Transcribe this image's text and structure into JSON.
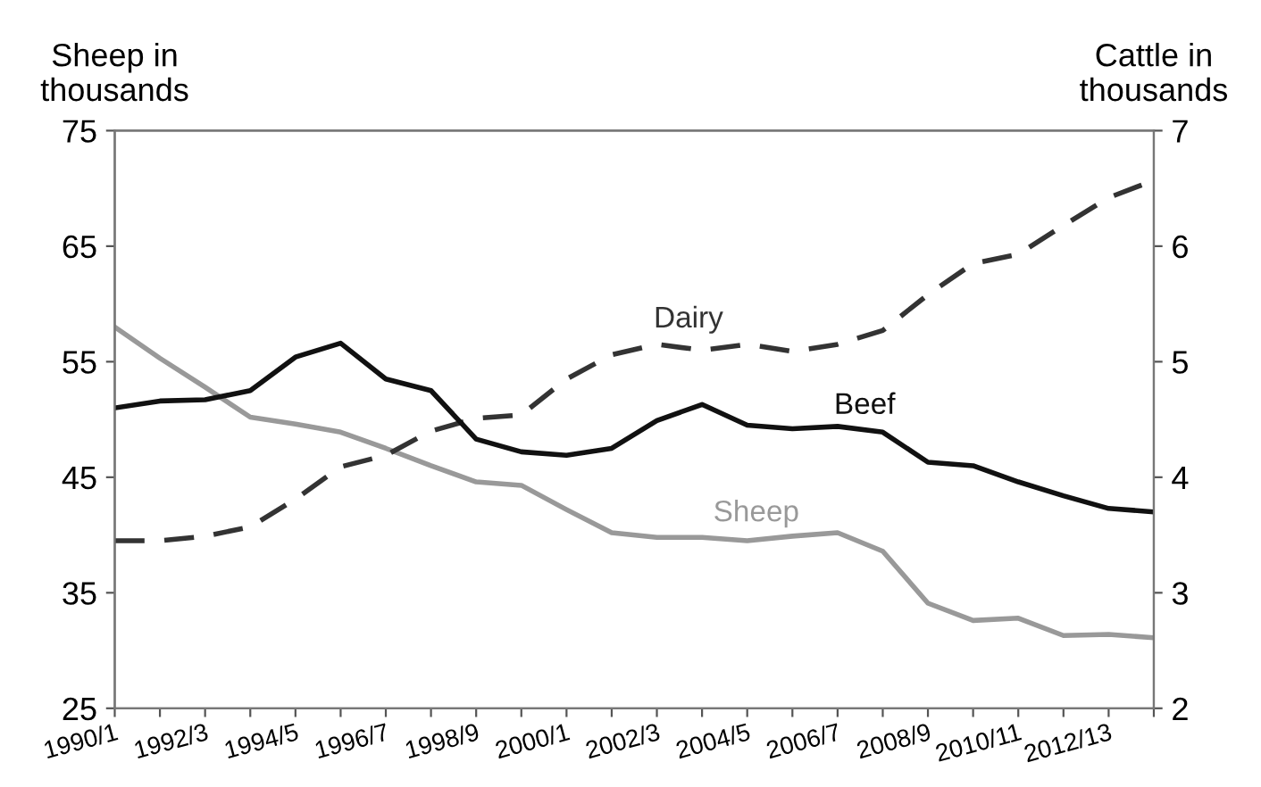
{
  "chart_data": {
    "type": "line",
    "ylabel": "Sheep in\nthousands",
    "y2label": "Cattle in\nthousands",
    "categories": [
      "1990/1",
      null,
      "1992/3",
      null,
      "1994/5",
      null,
      "1996/7",
      null,
      "1998/9",
      null,
      "2000/1",
      null,
      "2002/3",
      null,
      "2004/5",
      null,
      "2006/7",
      null,
      "2008/9",
      null,
      "2010/11",
      null,
      "2012/13",
      null
    ],
    "series": [
      {
        "name": "Dairy",
        "color": "#333333",
        "line_style": "dashed",
        "axis": "y2",
        "values": [
          3.45,
          3.45,
          3.49,
          3.57,
          3.81,
          4.09,
          4.19,
          4.4,
          4.51,
          4.54,
          4.85,
          5.06,
          5.15,
          5.1,
          5.15,
          5.09,
          5.15,
          5.27,
          5.58,
          5.85,
          5.93,
          6.18,
          6.42,
          6.57
        ]
      },
      {
        "name": "Beef",
        "color": "#111111",
        "line_style": "solid",
        "axis": "y2",
        "values": [
          4.6,
          4.66,
          4.67,
          4.75,
          5.04,
          5.16,
          4.85,
          4.75,
          4.33,
          4.22,
          4.19,
          4.25,
          4.49,
          4.63,
          4.45,
          4.42,
          4.44,
          4.39,
          4.13,
          4.1,
          3.96,
          3.84,
          3.73,
          3.7
        ]
      },
      {
        "name": "Sheep",
        "color": "#999999",
        "line_style": "solid",
        "values": [
          58.0,
          55.3,
          52.8,
          50.2,
          49.6,
          48.9,
          47.5,
          46.0,
          44.6,
          44.3,
          42.2,
          40.2,
          39.8,
          39.8,
          39.5,
          39.9,
          40.2,
          38.6,
          34.1,
          32.6,
          32.8,
          31.3,
          31.4,
          31.1
        ]
      }
    ],
    "ylim": [
      25,
      75
    ],
    "yticks": [
      25,
      35,
      45,
      55,
      65,
      75
    ],
    "y2lim": [
      2,
      7
    ],
    "y2ticks": [
      2,
      3,
      4,
      5,
      6,
      7
    ],
    "grid": false
  }
}
